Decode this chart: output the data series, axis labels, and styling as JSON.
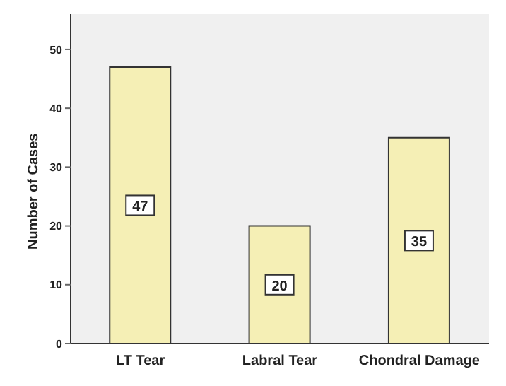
{
  "chart_data": {
    "type": "bar",
    "categories": [
      "LT Tear",
      "Labral Tear",
      "Chondral Damage"
    ],
    "values": [
      47,
      20,
      35
    ],
    "color": "#f5efb5",
    "ylabel": "Number of Cases",
    "ylim": [
      0,
      56
    ],
    "yticks": [
      0,
      10,
      20,
      30,
      40,
      50
    ],
    "data_labels": true,
    "grid": false
  }
}
